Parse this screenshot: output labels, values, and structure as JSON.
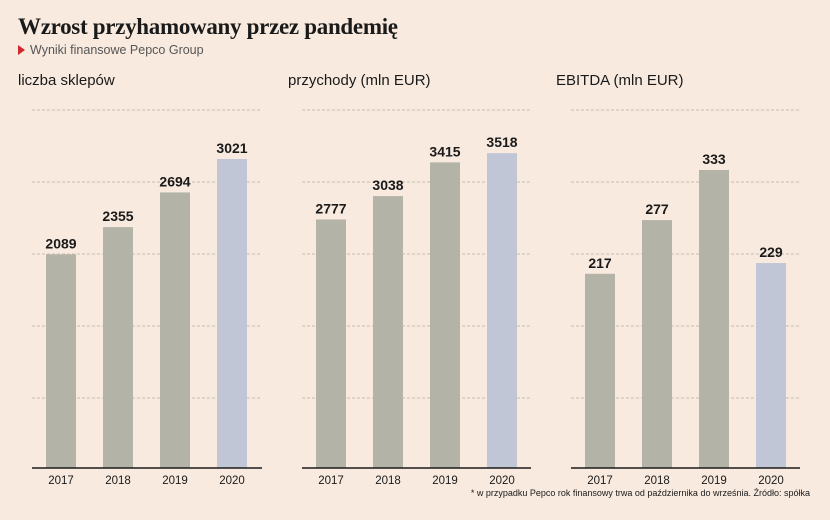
{
  "header": {
    "title": "Wzrost przyhamowany przez pandemię",
    "source": "Wyniki finansowe Pepco Group",
    "source_marker_icon": "red-triangle-icon",
    "source_marker_color": "#d0282d"
  },
  "footnote": "* w przypadku Pepco rok finansowy trwa od października do września. Źródło: spółka",
  "colors": {
    "background": "#f8eadf",
    "bar_past": "#b4b3a8",
    "bar_latest": "#c0c6d6",
    "grid": "#b9ada3",
    "axis": "#1a1a1a"
  },
  "chart_data": [
    {
      "type": "bar",
      "title": "liczba sklepów",
      "categories": [
        "2017",
        "2018",
        "2019",
        "2020"
      ],
      "values": [
        2089,
        2355,
        2694,
        3021
      ],
      "value_labels": [
        "2089",
        "2355",
        "2694",
        "3021"
      ],
      "highlight_last": true
    },
    {
      "type": "bar",
      "title": "przychody (mln EUR)",
      "categories": [
        "2017",
        "2018",
        "2019",
        "2020"
      ],
      "values": [
        2777,
        3038,
        3415,
        3518
      ],
      "value_labels": [
        "2777",
        "3038",
        "3415",
        "3518"
      ],
      "highlight_last": true
    },
    {
      "type": "bar",
      "title": "EBITDA (mln EUR)",
      "categories": [
        "2017",
        "2018",
        "2019",
        "2020"
      ],
      "values": [
        217,
        277,
        333,
        229
      ],
      "value_labels": [
        "217",
        "277",
        "333",
        "229"
      ],
      "highlight_last": true
    }
  ]
}
